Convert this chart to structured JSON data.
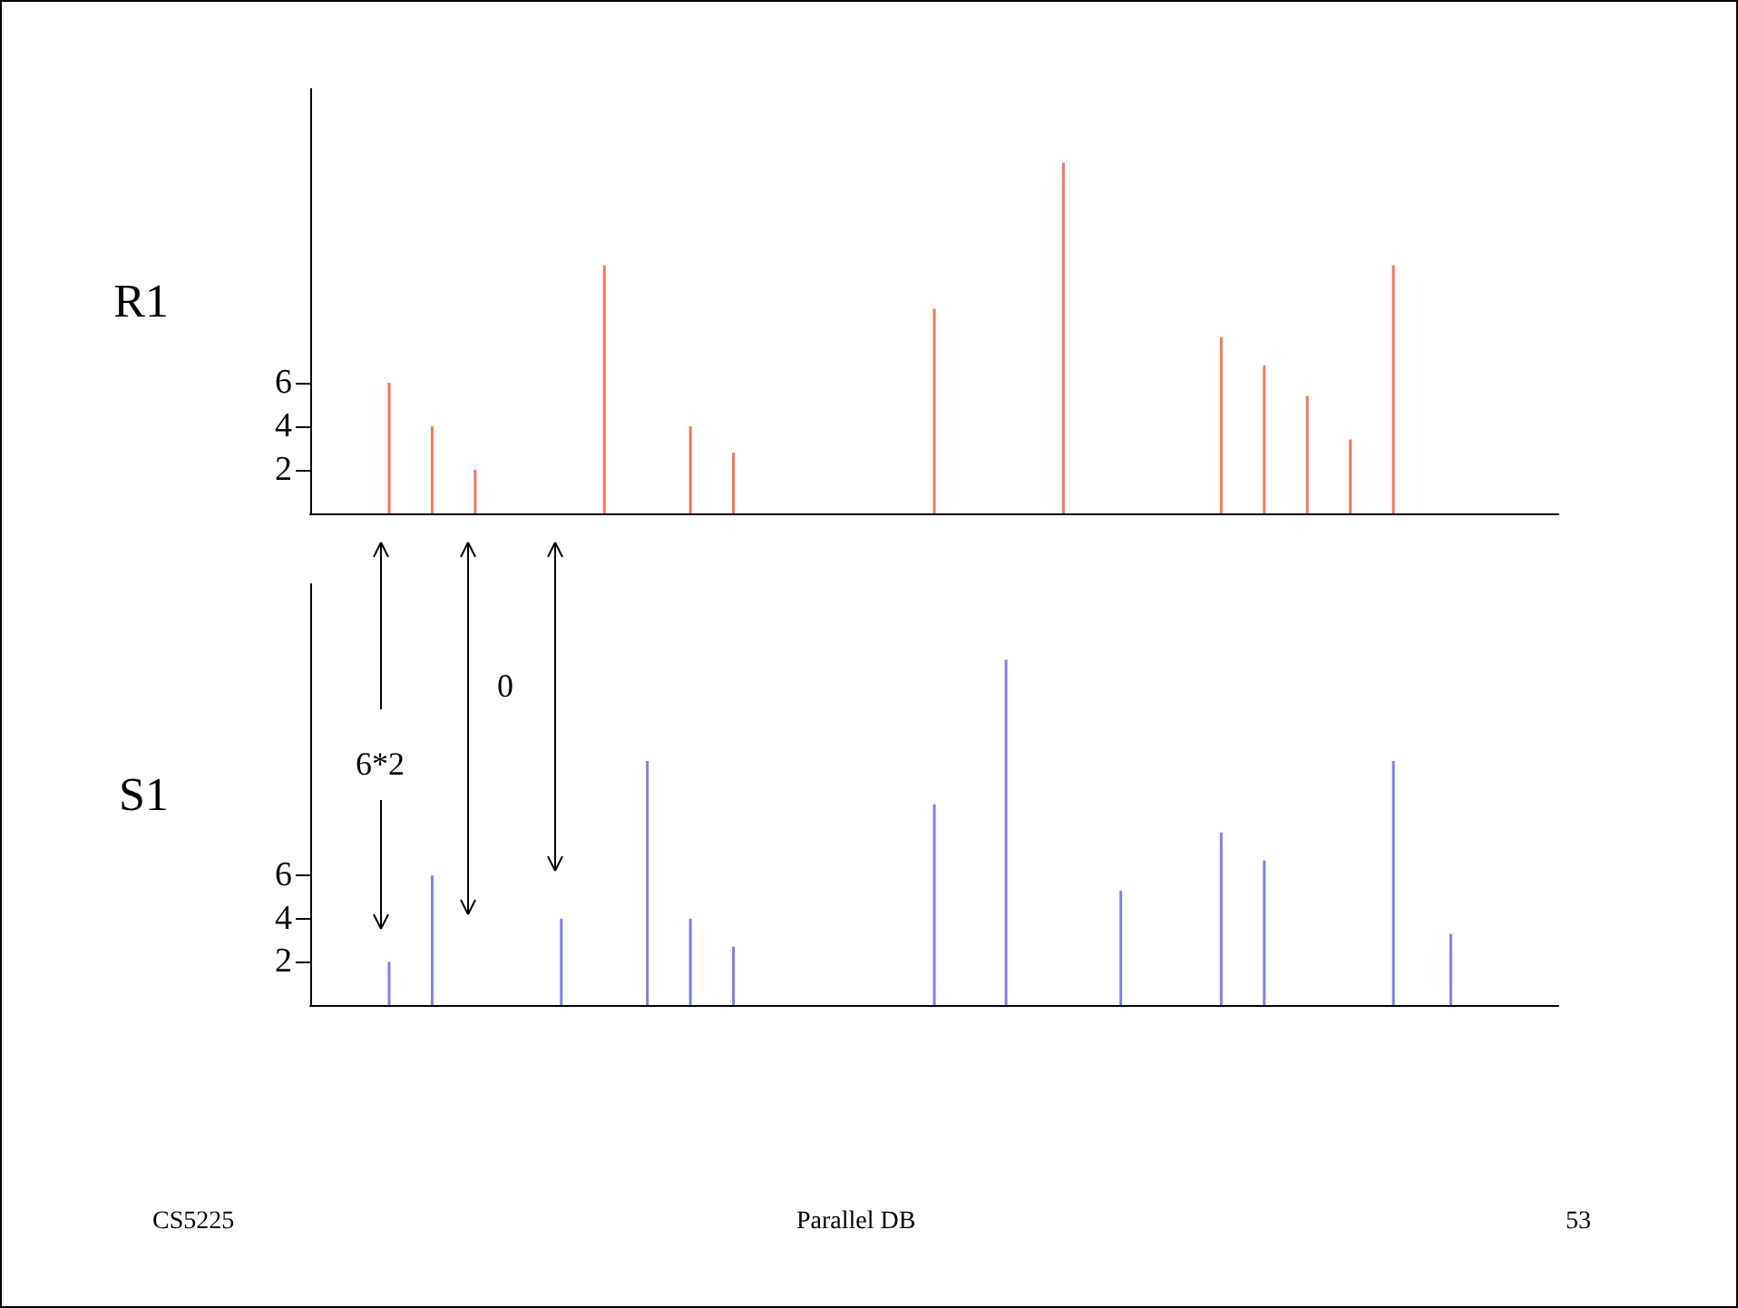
{
  "chart_data": [
    {
      "type": "bar",
      "ylabel": "R1",
      "color": "#f2785a",
      "ylim": [
        0,
        19.5
      ],
      "yticks": [
        2,
        4,
        6
      ],
      "tick_labels": "y",
      "grid": false,
      "categories": [
        null,
        null,
        null,
        null,
        null,
        null,
        null,
        null,
        null,
        null,
        null,
        null,
        null,
        null,
        null,
        null,
        null,
        null,
        null,
        null,
        null,
        null,
        null,
        null,
        null,
        null,
        null,
        null,
        null,
        null,
        null,
        null,
        null,
        null,
        null,
        null,
        null,
        null,
        null,
        null,
        null,
        null,
        null,
        null,
        null,
        null,
        null,
        null,
        null,
        null,
        null,
        null,
        null,
        null,
        null,
        null,
        null,
        null,
        null,
        null,
        null,
        null,
        null,
        null,
        null,
        null,
        null,
        null,
        null,
        null,
        null,
        null,
        null,
        null,
        null,
        null,
        null,
        null,
        null,
        null,
        null,
        null,
        null,
        null,
        null,
        null,
        null
      ],
      "values": [
        null,
        null,
        null,
        null,
        null,
        6,
        null,
        null,
        4,
        null,
        null,
        2,
        null,
        null,
        null,
        null,
        null,
        null,
        null,
        null,
        11.4,
        null,
        null,
        null,
        null,
        null,
        4,
        null,
        null,
        2.8,
        null,
        null,
        null,
        null,
        null,
        null,
        null,
        null,
        null,
        null,
        null,
        null,
        null,
        9.4,
        null,
        null,
        null,
        null,
        null,
        null,
        null,
        null,
        16.1,
        null,
        null,
        null,
        null,
        null,
        null,
        null,
        null,
        null,
        null,
        8.1,
        null,
        null,
        6.8,
        null,
        null,
        5.4,
        null,
        null,
        3.4,
        null,
        null,
        11.4,
        null,
        null,
        null,
        null,
        null,
        null,
        null,
        null,
        null,
        null,
        null
      ]
    },
    {
      "type": "bar",
      "ylabel": "S1",
      "color": "#7f7fe6",
      "ylim": [
        0,
        19.5
      ],
      "yticks": [
        2,
        4,
        6
      ],
      "tick_labels": "y",
      "grid": false,
      "categories": [
        null,
        null,
        null,
        null,
        null,
        null,
        null,
        null,
        null,
        null,
        null,
        null,
        null,
        null,
        null,
        null,
        null,
        null,
        null,
        null,
        null,
        null,
        null,
        null,
        null,
        null,
        null,
        null,
        null,
        null,
        null,
        null,
        null,
        null,
        null,
        null,
        null,
        null,
        null,
        null,
        null,
        null,
        null,
        null,
        null,
        null,
        null,
        null,
        null,
        null,
        null,
        null,
        null,
        null,
        null,
        null,
        null,
        null,
        null,
        null,
        null,
        null,
        null,
        null,
        null,
        null,
        null,
        null,
        null,
        null,
        null,
        null,
        null,
        null,
        null,
        null,
        null,
        null,
        null,
        null,
        null,
        null,
        null,
        null,
        null,
        null,
        null
      ],
      "values": [
        null,
        null,
        null,
        null,
        null,
        2,
        null,
        null,
        6,
        null,
        null,
        null,
        null,
        null,
        null,
        null,
        null,
        4,
        null,
        null,
        null,
        null,
        null,
        11.3,
        null,
        null,
        4,
        null,
        null,
        2.7,
        null,
        null,
        null,
        null,
        null,
        null,
        null,
        null,
        null,
        null,
        null,
        null,
        null,
        9.3,
        null,
        null,
        null,
        null,
        16,
        null,
        null,
        null,
        null,
        null,
        null,
        null,
        5.3,
        null,
        null,
        null,
        null,
        null,
        null,
        8,
        null,
        null,
        6.7,
        null,
        null,
        null,
        null,
        null,
        null,
        null,
        null,
        11.3,
        null,
        null,
        null,
        3.3,
        null,
        null,
        null,
        null,
        null,
        null,
        null
      ],
      "annotations": [
        "6*2",
        "0",
        "CS5225",
        "Parallel DB",
        "53"
      ]
    }
  ]
}
